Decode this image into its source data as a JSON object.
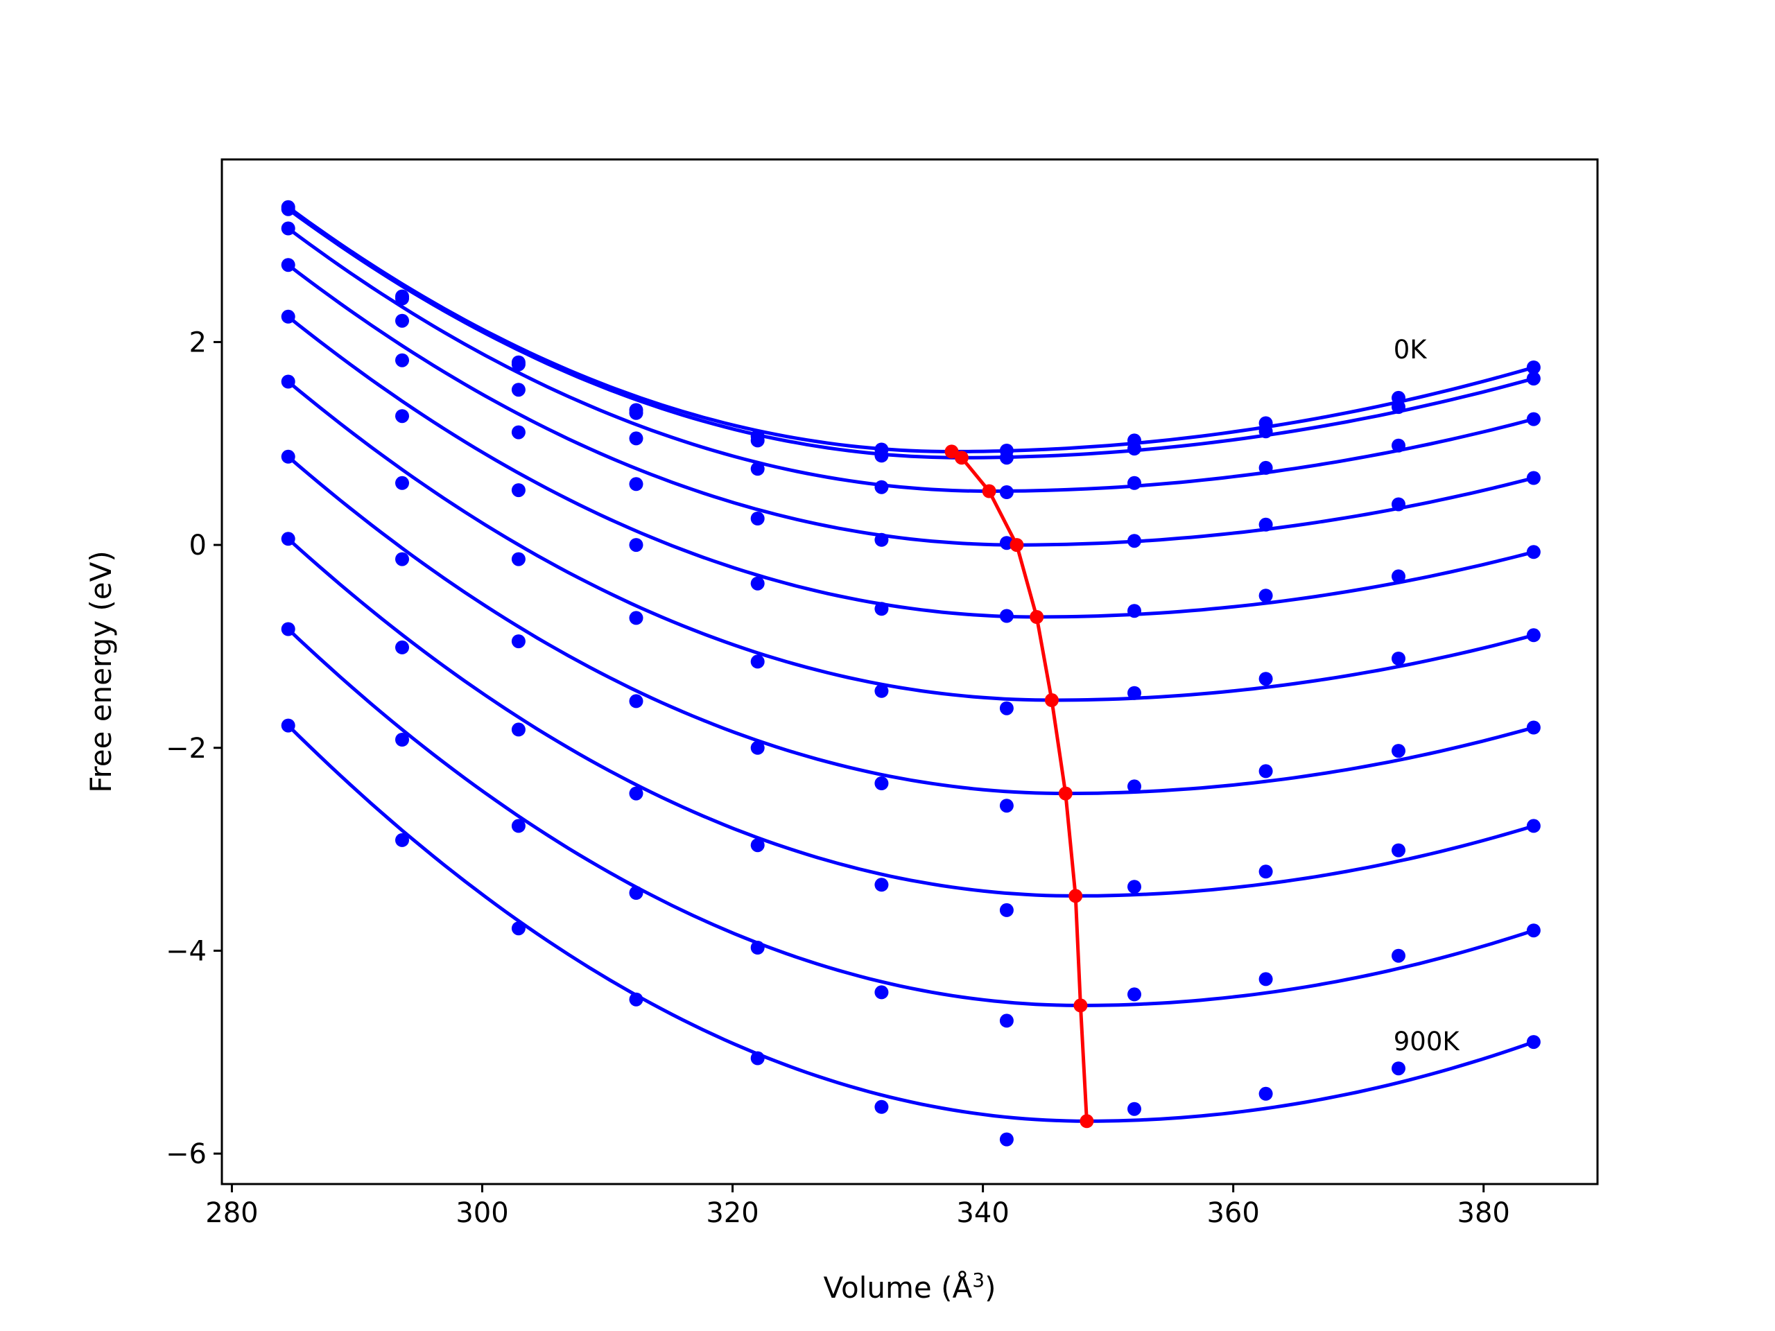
{
  "chart_data": {
    "type": "line",
    "xlabel": "Volume (Å",
    "xlabel_sup": "3",
    "xlabel_close": ")",
    "ylabel": "Free energy (eV)",
    "xlim": [
      279.2,
      389.1
    ],
    "ylim": [
      -6.3,
      3.8
    ],
    "grid": false,
    "xticks": [
      280,
      300,
      320,
      340,
      360,
      380
    ],
    "yticks": [
      -6,
      -4,
      -2,
      0,
      2
    ],
    "xtick_labels": [
      "280",
      "300",
      "320",
      "340",
      "360",
      "380"
    ],
    "ytick_labels": [
      "−6",
      "−4",
      "−2",
      "0",
      "2"
    ],
    "annotations": [
      {
        "text": "0K",
        "x": 372.8,
        "y": 1.84
      },
      {
        "text": "900K",
        "x": 372.8,
        "y": -4.98
      }
    ],
    "x": [
      284.5,
      293.6,
      302.9,
      312.3,
      322.0,
      331.9,
      341.9,
      352.1,
      362.6,
      373.2,
      384.0
    ],
    "series": [
      {
        "values": [
          3.33,
          2.45,
          1.8,
          1.33,
          1.07,
          0.94,
          0.93,
          1.03,
          1.2,
          1.45,
          1.75
        ],
        "fit_min": [
          337.5,
          0.92
        ]
      },
      {
        "values": [
          3.31,
          2.43,
          1.78,
          1.3,
          1.03,
          0.88,
          0.86,
          0.95,
          1.12,
          1.36,
          1.64
        ],
        "fit_min": [
          338.3,
          0.86
        ]
      },
      {
        "values": [
          3.12,
          2.21,
          1.53,
          1.05,
          0.75,
          0.57,
          0.52,
          0.61,
          0.76,
          0.98,
          1.24
        ],
        "fit_min": [
          340.5,
          0.53
        ]
      },
      {
        "values": [
          2.76,
          1.82,
          1.11,
          0.6,
          0.26,
          0.05,
          0.02,
          0.04,
          0.2,
          0.4,
          0.66
        ],
        "fit_min": [
          342.7,
          0.0
        ]
      },
      {
        "values": [
          2.25,
          1.27,
          0.54,
          0.0,
          -0.38,
          -0.63,
          -0.7,
          -0.65,
          -0.5,
          -0.31,
          -0.07
        ],
        "fit_min": [
          344.3,
          -0.71
        ]
      },
      {
        "values": [
          1.61,
          0.61,
          -0.14,
          -0.72,
          -1.15,
          -1.44,
          -1.61,
          -1.46,
          -1.32,
          -1.12,
          -0.89
        ],
        "fit_min": [
          345.5,
          -1.53
        ]
      },
      {
        "values": [
          0.87,
          -0.14,
          -0.95,
          -1.54,
          -2.0,
          -2.35,
          -2.57,
          -2.38,
          -2.23,
          -2.03,
          -1.8
        ],
        "fit_min": [
          346.6,
          -2.45
        ]
      },
      {
        "values": [
          0.06,
          -1.01,
          -1.82,
          -2.45,
          -2.96,
          -3.35,
          -3.6,
          -3.37,
          -3.22,
          -3.01,
          -2.77
        ],
        "fit_min": [
          347.4,
          -3.46
        ]
      },
      {
        "values": [
          -0.83,
          -1.92,
          -2.77,
          -3.43,
          -3.97,
          -4.41,
          -4.69,
          -4.43,
          -4.28,
          -4.05,
          -3.8
        ],
        "fit_min": [
          347.8,
          -4.54
        ]
      },
      {
        "values": [
          -1.78,
          -2.91,
          -3.78,
          -4.48,
          -5.06,
          -5.54,
          -5.86,
          -5.56,
          -5.41,
          -5.16,
          -4.9
        ],
        "fit_min": [
          348.3,
          -5.68
        ]
      }
    ],
    "min_curve": {
      "x": [
        337.5,
        338.3,
        340.5,
        342.7,
        344.3,
        345.5,
        346.6,
        347.4,
        347.8,
        348.3
      ],
      "y": [
        0.92,
        0.86,
        0.53,
        0.0,
        -0.71,
        -1.53,
        -2.45,
        -3.46,
        -4.54,
        -5.68
      ]
    },
    "colors": {
      "fits": "#0000ff",
      "points": "#0000ff",
      "min_curve": "#ff0000"
    }
  }
}
